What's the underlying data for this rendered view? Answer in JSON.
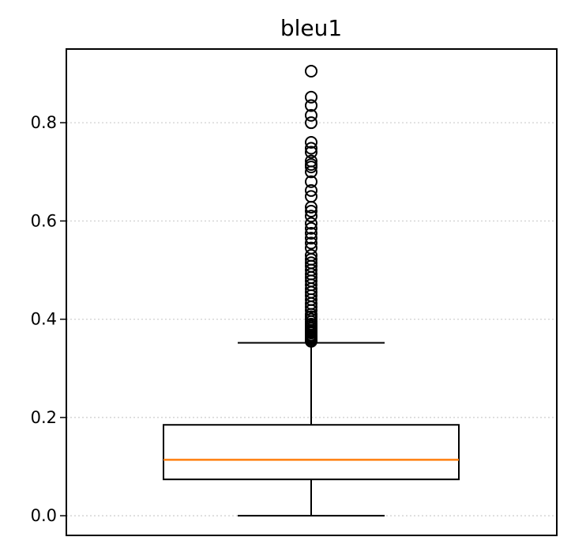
{
  "chart_data": {
    "type": "box",
    "title": "bleu1",
    "xlabel": "",
    "ylabel": "",
    "ylim": [
      -0.04,
      0.95
    ],
    "yticks": [
      0.0,
      0.2,
      0.4,
      0.6,
      0.8
    ],
    "ytick_labels": [
      "0.0",
      "0.2",
      "0.4",
      "0.6",
      "0.8"
    ],
    "grid": "y-dotted",
    "box": {
      "whisker_low": 0.0,
      "q1": 0.074,
      "median": 0.114,
      "q3": 0.185,
      "whisker_high": 0.352
    },
    "outliers": [
      0.355,
      0.357,
      0.36,
      0.362,
      0.365,
      0.368,
      0.372,
      0.375,
      0.378,
      0.382,
      0.386,
      0.39,
      0.395,
      0.4,
      0.405,
      0.41,
      0.418,
      0.425,
      0.432,
      0.44,
      0.448,
      0.455,
      0.462,
      0.47,
      0.478,
      0.485,
      0.492,
      0.5,
      0.508,
      0.515,
      0.522,
      0.53,
      0.545,
      0.555,
      0.565,
      0.575,
      0.585,
      0.595,
      0.61,
      0.62,
      0.628,
      0.65,
      0.662,
      0.68,
      0.7,
      0.71,
      0.715,
      0.722,
      0.74,
      0.748,
      0.76,
      0.8,
      0.815,
      0.835,
      0.852,
      0.905
    ],
    "colors": {
      "box": "#000000",
      "median": "#ff7f0e",
      "grid": "#cccccc"
    }
  }
}
